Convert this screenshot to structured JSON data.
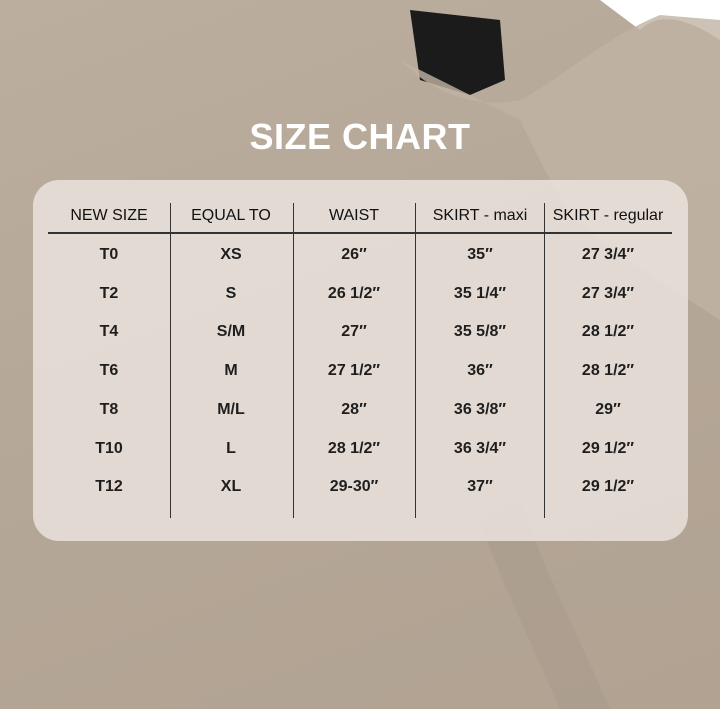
{
  "title": "SIZE CHART",
  "table": {
    "headers": [
      "NEW SIZE",
      "EQUAL TO",
      "WAIST",
      "SKIRT - maxi",
      "SKIRT - regular"
    ],
    "rows": [
      [
        "T0",
        "XS",
        "26″",
        "35″",
        "27 3/4″"
      ],
      [
        "T2",
        "S",
        "26 1/2″",
        "35 1/4″",
        "27 3/4″"
      ],
      [
        "T4",
        "S/M",
        "27″",
        "35 5/8″",
        "28 1/2″"
      ],
      [
        "T6",
        "M",
        "27 1/2″",
        "36″",
        "28 1/2″"
      ],
      [
        "T8",
        "M/L",
        "28″",
        "36 3/8″",
        "29″"
      ],
      [
        "T10",
        "L",
        "28 1/2″",
        "36 3/4″",
        "29 1/2″"
      ],
      [
        "T12",
        "XL",
        "29-30″",
        "37″",
        "29 1/2″"
      ]
    ]
  },
  "colors": {
    "background": "#b7a898",
    "panel": "#eee8e3",
    "text": "#1e1e1e"
  }
}
